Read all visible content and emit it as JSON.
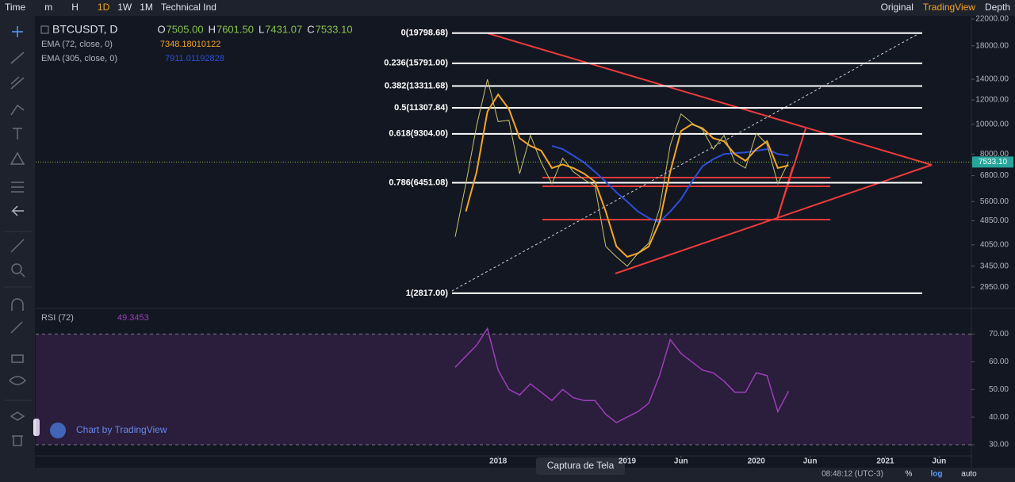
{
  "toolbar": {
    "left": [
      "Time",
      "m",
      "H",
      "1D",
      "1W",
      "1M",
      "Technical Ind"
    ],
    "right": [
      "Original",
      "TradingView",
      "Depth"
    ]
  },
  "ohlc": [
    {
      "key": "O",
      "value": "7505.00"
    },
    {
      "key": "H",
      "value": "7601.50"
    },
    {
      "key": "L",
      "value": "7431.07"
    },
    {
      "key": "C",
      "value": "7533.10"
    }
  ],
  "watermark": "Chart by TradingView",
  "tooltip": "Captura de Tela",
  "status": {
    "time": "08:48:12 (UTC-3)",
    "percent": "%",
    "log": "log",
    "auto": "auto"
  },
  "chart_data": [
    {
      "type": "line",
      "log": true,
      "x": [
        "2017-09",
        "2017-10",
        "2017-11",
        "2017-12",
        "2018-01",
        "2018-02",
        "2018-03",
        "2018-04",
        "2018-05",
        "2018-06",
        "2018-07",
        "2018-08",
        "2018-09",
        "2018-10",
        "2018-11",
        "2018-12",
        "2019-01",
        "2019-02",
        "2019-03",
        "2019-04",
        "2019-05",
        "2019-06",
        "2019-07",
        "2019-08",
        "2019-09",
        "2019-10",
        "2019-11",
        "2019-12",
        "2020-01",
        "2020-02",
        "2020-03",
        "2020-04"
      ],
      "series": [
        {
          "name": "BTCUSDT, D",
          "color": "#c9c26a",
          "values": [
            4300,
            6400,
            9900,
            14000,
            10200,
            10300,
            6900,
            9200,
            7500,
            6400,
            7750,
            7000,
            6600,
            6300,
            4000,
            3700,
            3450,
            3800,
            4100,
            5300,
            8550,
            10800,
            10100,
            9600,
            8300,
            9200,
            7550,
            7200,
            9350,
            8600,
            6400,
            7533.1
          ]
        },
        {
          "name": "EMA (72, close, 0)",
          "color": "#f5a623",
          "legend_value": "7348.18010122",
          "values": [
            null,
            5200,
            7000,
            11000,
            12500,
            11200,
            9000,
            8500,
            8200,
            7200,
            7400,
            7200,
            6900,
            6500,
            5200,
            4000,
            3700,
            3800,
            4000,
            4800,
            7000,
            9500,
            10000,
            9700,
            9000,
            8800,
            8000,
            7600,
            8300,
            8800,
            7200,
            7348.18
          ]
        },
        {
          "name": "EMA (305, close, 0)",
          "color": "#2d4fd8",
          "legend_value": "7911.01192828",
          "values": [
            null,
            null,
            null,
            null,
            null,
            null,
            null,
            null,
            null,
            8500,
            8300,
            7900,
            7500,
            7000,
            6500,
            6000,
            5600,
            5200,
            4950,
            4800,
            5200,
            5700,
            6500,
            7300,
            7700,
            8000,
            8050,
            8100,
            8200,
            8300,
            8000,
            7911.01
          ]
        }
      ],
      "xlim": [
        "2014-06",
        "2021-09"
      ],
      "xticks": [
        {
          "value": "2018-01",
          "label": "2018"
        },
        {
          "value": "2019-01",
          "label": "2019"
        },
        {
          "value": "2019-06",
          "label": "Jun"
        },
        {
          "value": "2020-01",
          "label": "2020"
        },
        {
          "value": "2020-06",
          "label": "Jun"
        },
        {
          "value": "2021-01",
          "label": "2021"
        },
        {
          "value": "2021-06",
          "label": "Jun"
        }
      ],
      "ylim": [
        2530,
        22530
      ],
      "yticks": [
        {
          "value": 22000,
          "label": "22000.00"
        },
        {
          "value": 18000,
          "label": "18000.00"
        },
        {
          "value": 14000,
          "label": "14000.00"
        },
        {
          "value": 12000,
          "label": "12000.00"
        },
        {
          "value": 10000,
          "label": "10000.00"
        },
        {
          "value": 8000,
          "label": "8000.00"
        },
        {
          "value": 6800,
          "label": "6800.00"
        },
        {
          "value": 5600,
          "label": "5600.00"
        },
        {
          "value": 4850,
          "label": "4850.00"
        },
        {
          "value": 4050,
          "label": "4050.00"
        },
        {
          "value": 3450,
          "label": "3450.00"
        },
        {
          "value": 2950,
          "label": "2950.00"
        }
      ],
      "levels": [
        {
          "value": 19798.68,
          "label": "0(19798.68)"
        },
        {
          "value": 15791,
          "label": "0.236(15791.00)"
        },
        {
          "value": 13311.68,
          "label": "0.382(13311.68)"
        },
        {
          "value": 11307.84,
          "label": "0.5(11307.84)"
        },
        {
          "value": 9304,
          "label": "0.618(9304.00)"
        },
        {
          "value": 6451.08,
          "label": "0.786(6451.08)"
        },
        {
          "value": 2817,
          "label": "1(2817.00)"
        }
      ],
      "last_price": {
        "value": 7533.1,
        "label": "7533.10"
      }
    },
    {
      "type": "line",
      "x": [
        "2017-09",
        "2017-10",
        "2017-11",
        "2017-12",
        "2018-01",
        "2018-02",
        "2018-03",
        "2018-04",
        "2018-05",
        "2018-06",
        "2018-07",
        "2018-08",
        "2018-09",
        "2018-10",
        "2018-11",
        "2018-12",
        "2019-01",
        "2019-02",
        "2019-03",
        "2019-04",
        "2019-05",
        "2019-06",
        "2019-07",
        "2019-08",
        "2019-09",
        "2019-10",
        "2019-11",
        "2019-12",
        "2020-01",
        "2020-02",
        "2020-03",
        "2020-04"
      ],
      "series": [
        {
          "name": "RSI (72)",
          "color": "#9c3fb8",
          "values": [
            58,
            62,
            66,
            72,
            57,
            50,
            48,
            52,
            49,
            46,
            50,
            47,
            46,
            46,
            41,
            38,
            40,
            42,
            45,
            55,
            68,
            63,
            60,
            57,
            56,
            53,
            49,
            49,
            56,
            55,
            42,
            49.3453
          ]
        }
      ],
      "xlim": [
        "2014-06",
        "2021-09"
      ],
      "ylim": [
        26,
        79
      ],
      "yticks": [
        {
          "value": 70,
          "label": "70.00"
        },
        {
          "value": 60,
          "label": "60.00"
        },
        {
          "value": 50,
          "label": "50.00"
        },
        {
          "value": 40,
          "label": "40.00"
        },
        {
          "value": 30,
          "label": "30.00"
        }
      ],
      "band": [
        30,
        70
      ]
    }
  ]
}
